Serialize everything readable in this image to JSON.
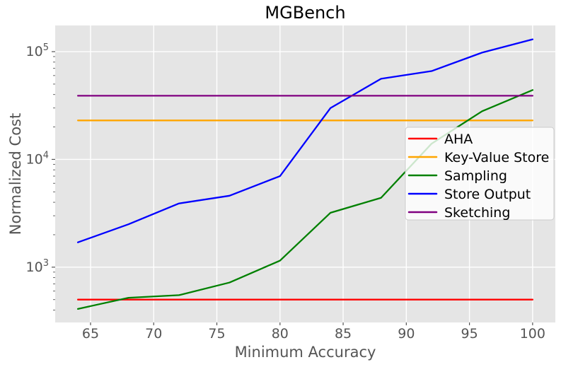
{
  "figure": {
    "background": "#ffffff"
  },
  "chart_data": {
    "type": "line",
    "title": "MGBench",
    "xlabel": "Minimum Accuracy",
    "ylabel": "Normalized Cost",
    "yscale": "log",
    "grid": true,
    "x": [
      64,
      68,
      72,
      76,
      80,
      84,
      88,
      92,
      96,
      100
    ],
    "series": [
      {
        "name": "AHA",
        "color": "#ff0000",
        "values": [
          500,
          500,
          500,
          500,
          500,
          500,
          500,
          500,
          500,
          500
        ]
      },
      {
        "name": "Key-Value Store",
        "color": "#ffa500",
        "values": [
          23000,
          23000,
          23000,
          23000,
          23000,
          23000,
          23000,
          23000,
          23000,
          23000
        ]
      },
      {
        "name": "Sampling",
        "color": "#008000",
        "values": [
          410,
          520,
          550,
          720,
          1150,
          3200,
          4400,
          14000,
          28000,
          44000
        ]
      },
      {
        "name": "Store Output",
        "color": "#0000ff",
        "values": [
          1700,
          2500,
          3900,
          4600,
          7000,
          30000,
          56000,
          66000,
          98000,
          130000
        ]
      },
      {
        "name": "Sketching",
        "color": "#800080",
        "values": [
          39000,
          39000,
          39000,
          39000,
          39000,
          39000,
          39000,
          39000,
          39000,
          39000
        ]
      }
    ],
    "xticks": [
      65,
      70,
      75,
      80,
      85,
      90,
      95,
      100
    ],
    "ytick_exponents": [
      3,
      4,
      5
    ],
    "xlim": [
      62.2,
      101.8
    ],
    "ylim_log": [
      2.487,
      5.243
    ],
    "legend": {
      "position": "center right",
      "entries": [
        "AHA",
        "Key-Value Store",
        "Sampling",
        "Store Output",
        "Sketching"
      ]
    },
    "style": {
      "axes_background": "#e5e5e5",
      "grid_color": "#ffffff",
      "tick_color": "#555555",
      "tick_label_color": "#555555",
      "axis_label_color": "#555555",
      "title_color": "#000000",
      "legend_background": "rgba(255,255,255,0.8)",
      "legend_border": "#cccccc",
      "legend_text_color": "#000000"
    }
  }
}
